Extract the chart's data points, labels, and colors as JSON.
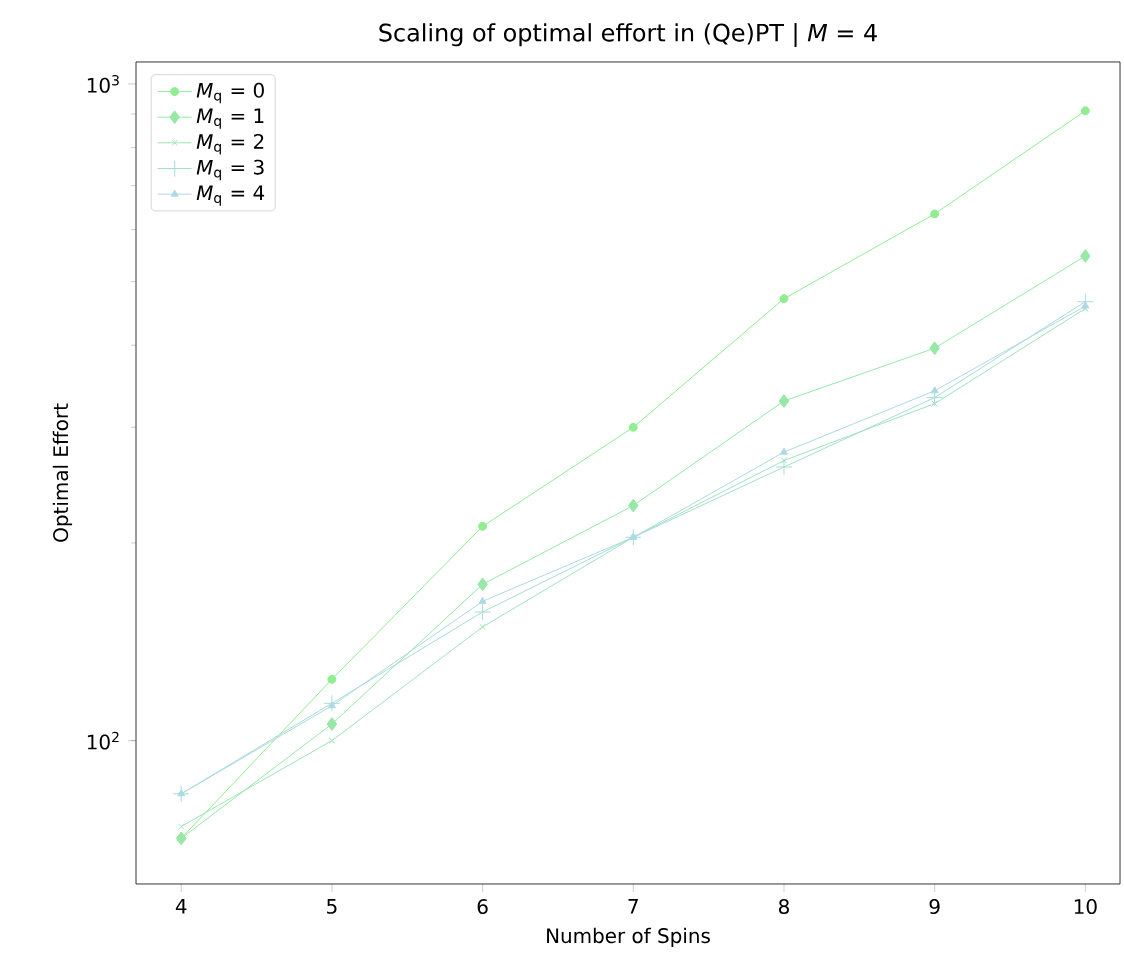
{
  "chart_data": {
    "type": "line",
    "title": "Scaling of optimal effort in (Qe)PT | *M* = 4",
    "xlabel": "Number of Spins",
    "ylabel": "Optimal Effort",
    "x": [
      4,
      5,
      6,
      7,
      8,
      9,
      10
    ],
    "series": [
      {
        "name": "*M*$_{q}$ = 0",
        "color": "#90ee90",
        "marker": "circle",
        "values": [
          71,
          124,
          212,
          300,
          471,
          634,
          910
        ]
      },
      {
        "name": "*M*$_{q}$ = 1",
        "color": "#97e8a6",
        "marker": "diamond",
        "values": [
          71,
          106,
          173,
          228,
          329,
          396,
          547
        ]
      },
      {
        "name": "*M*$_{q}$ = 2",
        "color": "#9ee3bb",
        "marker": "cross",
        "values": [
          74,
          100,
          149,
          204,
          267,
          326,
          455
        ]
      },
      {
        "name": "*M*$_{q}$ = 3",
        "color": "#a6ddd1",
        "marker": "plus",
        "values": [
          83,
          114,
          157,
          204,
          261,
          333,
          466
        ]
      },
      {
        "name": "*M*$_{q}$ = 4",
        "color": "#add8e6",
        "marker": "triangle_down",
        "values": [
          83,
          113,
          163,
          204,
          275,
          341,
          459
        ]
      }
    ],
    "log": "y",
    "xlim": [
      3.7,
      10.23
    ],
    "ylim": [
      60.5,
      1080
    ],
    "xticks": [
      4,
      5,
      6,
      7,
      8,
      9,
      10
    ],
    "yticks": [
      {
        "value": 100,
        "label": "10$^{2}$"
      },
      {
        "value": 1000,
        "label": "10$^{3}$"
      }
    ],
    "legend": "top left",
    "grid": false
  }
}
